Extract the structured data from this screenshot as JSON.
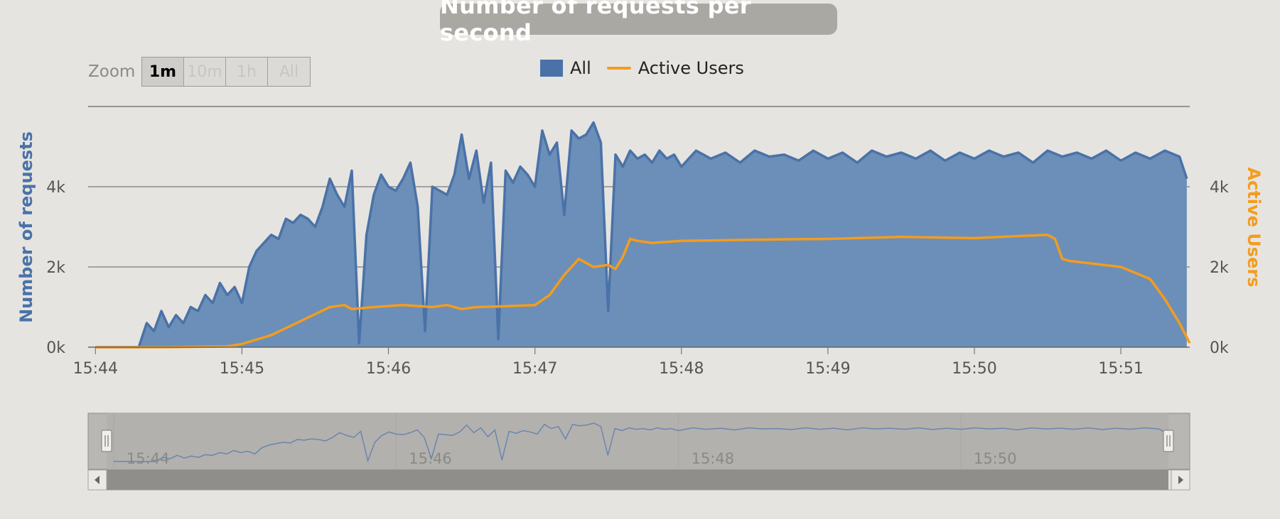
{
  "colors": {
    "requests": "#4a72a8",
    "requests_fill": "#6b8fb8",
    "users": "#f39c1f",
    "grid": "#7a7a7a",
    "axis_text": "#555555",
    "navigator_mask": "#b8b6b2",
    "navigator_line": "#6a86b0"
  },
  "title": "Number of requests per second",
  "zoom": {
    "label": "Zoom",
    "buttons": [
      "1m",
      "10m",
      "1h",
      "All"
    ],
    "selected": "1m"
  },
  "legend": {
    "items": [
      {
        "label": "All",
        "swatch": "box"
      },
      {
        "label": "Active Users",
        "swatch": "line"
      }
    ]
  },
  "chart_data": {
    "type": "area",
    "title": "Number of requests per second",
    "y_left_label": "Number of requests",
    "y_right_label": "Active Users",
    "x_ticks": [
      "15:44",
      "15:45",
      "15:46",
      "15:47",
      "15:48",
      "15:49",
      "15:50",
      "15:51"
    ],
    "y_left_ticks": [
      "0k",
      "2k",
      "4k"
    ],
    "y_right_ticks": [
      "0k",
      "2k",
      "4k"
    ],
    "x_range_minutes": [
      -0.05,
      7.47
    ],
    "ylim": [
      0,
      6000
    ],
    "grid": true,
    "legend_position": "top-center",
    "series": [
      {
        "name": "All",
        "type": "area",
        "x_minutes": [
          0.0,
          0.3,
          0.3,
          0.35,
          0.4,
          0.45,
          0.5,
          0.55,
          0.6,
          0.65,
          0.7,
          0.75,
          0.8,
          0.85,
          0.9,
          0.95,
          1.0,
          1.05,
          1.1,
          1.15,
          1.2,
          1.25,
          1.3,
          1.35,
          1.4,
          1.45,
          1.5,
          1.55,
          1.6,
          1.65,
          1.7,
          1.75,
          1.8,
          1.85,
          1.9,
          1.95,
          2.0,
          2.05,
          2.1,
          2.15,
          2.2,
          2.25,
          2.3,
          2.35,
          2.4,
          2.45,
          2.5,
          2.55,
          2.6,
          2.65,
          2.7,
          2.75,
          2.8,
          2.85,
          2.9,
          2.95,
          3.0,
          3.05,
          3.1,
          3.15,
          3.2,
          3.25,
          3.3,
          3.35,
          3.4,
          3.45,
          3.5,
          3.55,
          3.6,
          3.65,
          3.7,
          3.75,
          3.8,
          3.85,
          3.9,
          3.95,
          4.0,
          4.1,
          4.2,
          4.3,
          4.4,
          4.5,
          4.6,
          4.7,
          4.8,
          4.9,
          5.0,
          5.1,
          5.2,
          5.3,
          5.4,
          5.5,
          5.6,
          5.7,
          5.8,
          5.9,
          6.0,
          6.1,
          6.2,
          6.3,
          6.4,
          6.5,
          6.6,
          6.7,
          6.8,
          6.9,
          7.0,
          7.1,
          7.2,
          7.3,
          7.4,
          7.45
        ],
        "values": [
          0,
          0,
          50,
          600,
          400,
          900,
          500,
          800,
          600,
          1000,
          900,
          1300,
          1100,
          1600,
          1300,
          1500,
          1100,
          2000,
          2400,
          2600,
          2800,
          2700,
          3200,
          3100,
          3300,
          3200,
          3000,
          3500,
          4200,
          3800,
          3500,
          4400,
          100,
          2800,
          3800,
          4300,
          4000,
          3900,
          4200,
          4600,
          3500,
          400,
          4000,
          3900,
          3800,
          4300,
          5300,
          4200,
          4900,
          3600,
          4600,
          200,
          4400,
          4100,
          4500,
          4300,
          4000,
          5400,
          4800,
          5100,
          3300,
          5400,
          5200,
          5300,
          5600,
          5100,
          900,
          4800,
          4500,
          4900,
          4700,
          4800,
          4600,
          4900,
          4700,
          4800,
          4500,
          4900,
          4700,
          4850,
          4600,
          4900,
          4750,
          4800,
          4650,
          4900,
          4700,
          4850,
          4600,
          4900,
          4750,
          4850,
          4700,
          4900,
          4650,
          4850,
          4700,
          4900,
          4750,
          4850,
          4600,
          4900,
          4750,
          4850,
          4700,
          4900,
          4650,
          4850,
          4700,
          4900,
          4750,
          4200
        ]
      },
      {
        "name": "Active Users",
        "type": "line",
        "x_minutes": [
          0.0,
          0.5,
          0.9,
          1.0,
          1.2,
          1.4,
          1.6,
          1.7,
          1.75,
          1.9,
          2.1,
          2.3,
          2.4,
          2.5,
          2.6,
          2.8,
          3.0,
          3.1,
          3.2,
          3.3,
          3.4,
          3.5,
          3.55,
          3.6,
          3.65,
          3.7,
          3.8,
          4.0,
          4.5,
          5.0,
          5.5,
          6.0,
          6.5,
          6.55,
          6.6,
          6.65,
          7.0,
          7.2,
          7.3,
          7.4,
          7.47
        ],
        "values": [
          0,
          0,
          20,
          80,
          300,
          650,
          1000,
          1050,
          950,
          1000,
          1050,
          1000,
          1050,
          950,
          1000,
          1020,
          1050,
          1300,
          1800,
          2200,
          2000,
          2050,
          1950,
          2250,
          2700,
          2650,
          2600,
          2650,
          2680,
          2700,
          2750,
          2720,
          2800,
          2700,
          2200,
          2150,
          2000,
          1700,
          1200,
          600,
          100
        ]
      }
    ]
  },
  "navigator": {
    "ticks": [
      "15:44",
      "15:46",
      "15:48",
      "15:50"
    ]
  }
}
